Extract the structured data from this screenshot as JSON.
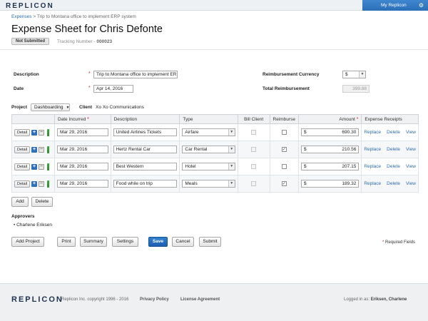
{
  "topbar": {
    "logo": "REPLICON",
    "user_menu": "My Replicon",
    "gear_glyph": "⚙"
  },
  "breadcrumb": {
    "root": "Expenses",
    "sep": " > ",
    "current": "Trip to Montana office to implement ERP system"
  },
  "page": {
    "title": "Expense Sheet for Chris Defonte",
    "status": "Not Submitted",
    "tracking_label": "Tracking Number - ",
    "tracking_value": "000023"
  },
  "form": {
    "description_label": "Description",
    "description_value": "Trip to Montana office to implement ERI",
    "date_label": "Date",
    "date_value": "Apr 14, 2016",
    "currency_label": "Reimbursement Currency",
    "currency_value": "$",
    "total_label": "Total Reimbursement",
    "total_value": "399.88",
    "project_label": "Project",
    "project_value": "Dashboarding",
    "client_label": "Client",
    "client_value": "Xo Xo Communications",
    "required_mark": "*"
  },
  "table": {
    "headers": {
      "date": "Date Incurred",
      "description": "Description",
      "type": "Type",
      "bill_client": "Bill Client",
      "reimburse": "Reimburse",
      "amount": "Amount",
      "receipts": "Expense Receipts"
    },
    "detail_label": "Detail",
    "plus_glyph": "+",
    "minus_glyph": "−",
    "check_glyph": "✓",
    "currency_symbol": "$",
    "receipt_actions": {
      "replace": "Replace",
      "delete": "Delete",
      "view": "View"
    },
    "rows": [
      {
        "date": "Mar 29, 2016",
        "description": "United Airlines Tickets",
        "type": "Airfare",
        "bill_client": false,
        "reimburse": false,
        "amount": "690.30"
      },
      {
        "date": "Mar 29, 2016",
        "description": "Hertz Rental Car",
        "type": "Car Rental",
        "bill_client": false,
        "reimburse": true,
        "amount": "210.56"
      },
      {
        "date": "Mar 29, 2016",
        "description": "Best Western",
        "type": "Hotel",
        "bill_client": false,
        "reimburse": false,
        "amount": "207.15"
      },
      {
        "date": "Mar 29, 2016",
        "description": "Food while on trip",
        "type": "Meals",
        "bill_client": false,
        "reimburse": true,
        "amount": "189.32"
      }
    ]
  },
  "row_buttons": {
    "add": "Add",
    "delete": "Delete"
  },
  "approvers": {
    "heading": "Approvers",
    "names": [
      "Charlene Eriksen"
    ]
  },
  "actions": {
    "add_project": "Add Project",
    "print": "Print",
    "summary": "Summary",
    "settings": "Settings",
    "save": "Save",
    "cancel": "Cancel",
    "submit": "Submit"
  },
  "required_note": "Required Fields",
  "footer": {
    "logo": "REPLICON",
    "copyright": "Replicon Inc. copyright 1996 - 2016",
    "privacy": "Privacy Policy",
    "license": "License Agreement",
    "logged_in_prefix": "Logged in as: ",
    "logged_in_user": "Eriksen, Charlene"
  },
  "colors": {
    "accent": "#2a6db5",
    "primary_button": "#1f5fae",
    "required": "#cc2222",
    "grip": "#2d8a2d"
  },
  "icons": [
    "gear-icon",
    "dropdown-arrow-icon",
    "add-row-icon",
    "remove-row-icon",
    "drag-handle-icon",
    "checkbox-icon"
  ]
}
